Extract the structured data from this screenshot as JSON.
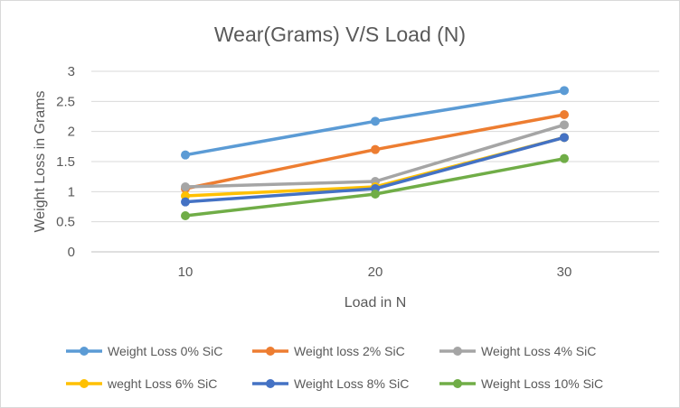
{
  "chart_data": {
    "type": "line",
    "title": "Wear(Grams) V/S Load (N)",
    "xlabel": "Load in N",
    "ylabel": "Weight Loss in Grams",
    "categories": [
      "10",
      "20",
      "30"
    ],
    "yticks": [
      "0",
      "0.5",
      "1",
      "1.5",
      "2",
      "2.5",
      "3"
    ],
    "ylim": [
      0,
      3
    ],
    "grid": true,
    "legend_position": "bottom",
    "series": [
      {
        "name": "Weight Loss 0% SiC",
        "color": "#5b9bd5",
        "values": [
          1.61,
          2.17,
          2.68
        ]
      },
      {
        "name": "Weight loss 2% SiC",
        "color": "#ed7d31",
        "values": [
          1.05,
          1.7,
          2.28
        ]
      },
      {
        "name": "Weight Loss 4% SiC",
        "color": "#a5a5a5",
        "values": [
          1.08,
          1.17,
          2.11
        ]
      },
      {
        "name": "weght Loss 6% SiC",
        "color": "#ffc000",
        "values": [
          0.93,
          1.08,
          1.9
        ]
      },
      {
        "name": "Weight Loss 8% SiC",
        "color": "#4472c4",
        "values": [
          0.83,
          1.05,
          1.9
        ]
      },
      {
        "name": "Weight Loss 10% SiC",
        "color": "#70ad47",
        "values": [
          0.6,
          0.96,
          1.55
        ]
      }
    ]
  }
}
